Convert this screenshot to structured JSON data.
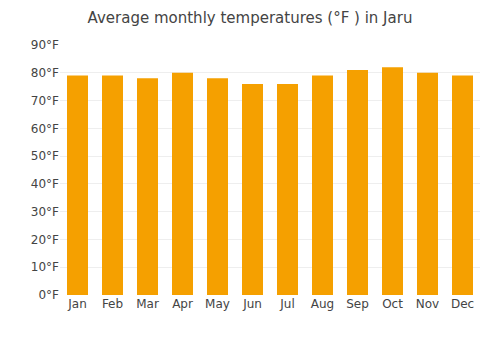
{
  "chart_data": {
    "type": "bar",
    "title": "Average monthly temperatures (°F ) in Jaru",
    "categories": [
      "Jan",
      "Feb",
      "Mar",
      "Apr",
      "May",
      "Jun",
      "Jul",
      "Aug",
      "Sep",
      "Oct",
      "Nov",
      "Dec"
    ],
    "values": [
      79,
      79,
      78,
      80,
      78,
      76,
      76,
      79,
      81,
      82,
      80,
      79
    ],
    "color": "#F5A000",
    "ylim": [
      0,
      90
    ],
    "yticks": [
      {
        "value": 0,
        "label": "0°F"
      },
      {
        "value": 10,
        "label": "10°F"
      },
      {
        "value": 20,
        "label": "20°F"
      },
      {
        "value": 30,
        "label": "30°F"
      },
      {
        "value": 40,
        "label": "40°F"
      },
      {
        "value": 50,
        "label": "50°F"
      },
      {
        "value": 60,
        "label": "60°F"
      },
      {
        "value": 70,
        "label": "70°F"
      },
      {
        "value": 80,
        "label": "80°F"
      },
      {
        "value": 90,
        "label": "90°F"
      }
    ],
    "grid": true
  }
}
